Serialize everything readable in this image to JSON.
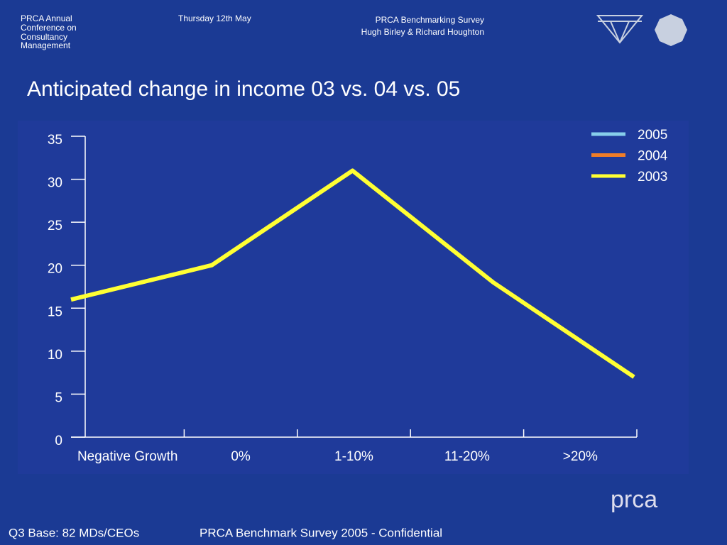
{
  "header": {
    "conference": [
      "PRCA Annual",
      "Conference on",
      "Consultancy",
      "Management"
    ],
    "date": "Thursday 12th May",
    "survey": "PRCA Benchmarking Survey",
    "authors": "Hugh Birley & Richard Houghton"
  },
  "chart_data": {
    "type": "line",
    "title": "Anticipated change in income 03 vs. 04 vs. 05",
    "categories": [
      "Negative Growth",
      "0%",
      "1-10%",
      "11-20%",
      ">20%"
    ],
    "series": [
      {
        "name": "2005",
        "color": "#87ceeb",
        "values": [
          null,
          null,
          null,
          null,
          null
        ]
      },
      {
        "name": "2004",
        "color": "#f07d28",
        "values": [
          null,
          null,
          null,
          null,
          null
        ]
      },
      {
        "name": "2003",
        "color": "#ffff33",
        "values": [
          16,
          20,
          31,
          18,
          7
        ]
      }
    ],
    "ylim": [
      0,
      35
    ],
    "yticks": [
      0,
      5,
      10,
      15,
      20,
      25,
      30,
      35
    ],
    "legend": "top-right"
  },
  "footer": {
    "base": "Q3 Base: 82 MDs/CEOs",
    "confidential": "PRCA Benchmark Survey 2005 - Confidential",
    "logo": "prca"
  }
}
